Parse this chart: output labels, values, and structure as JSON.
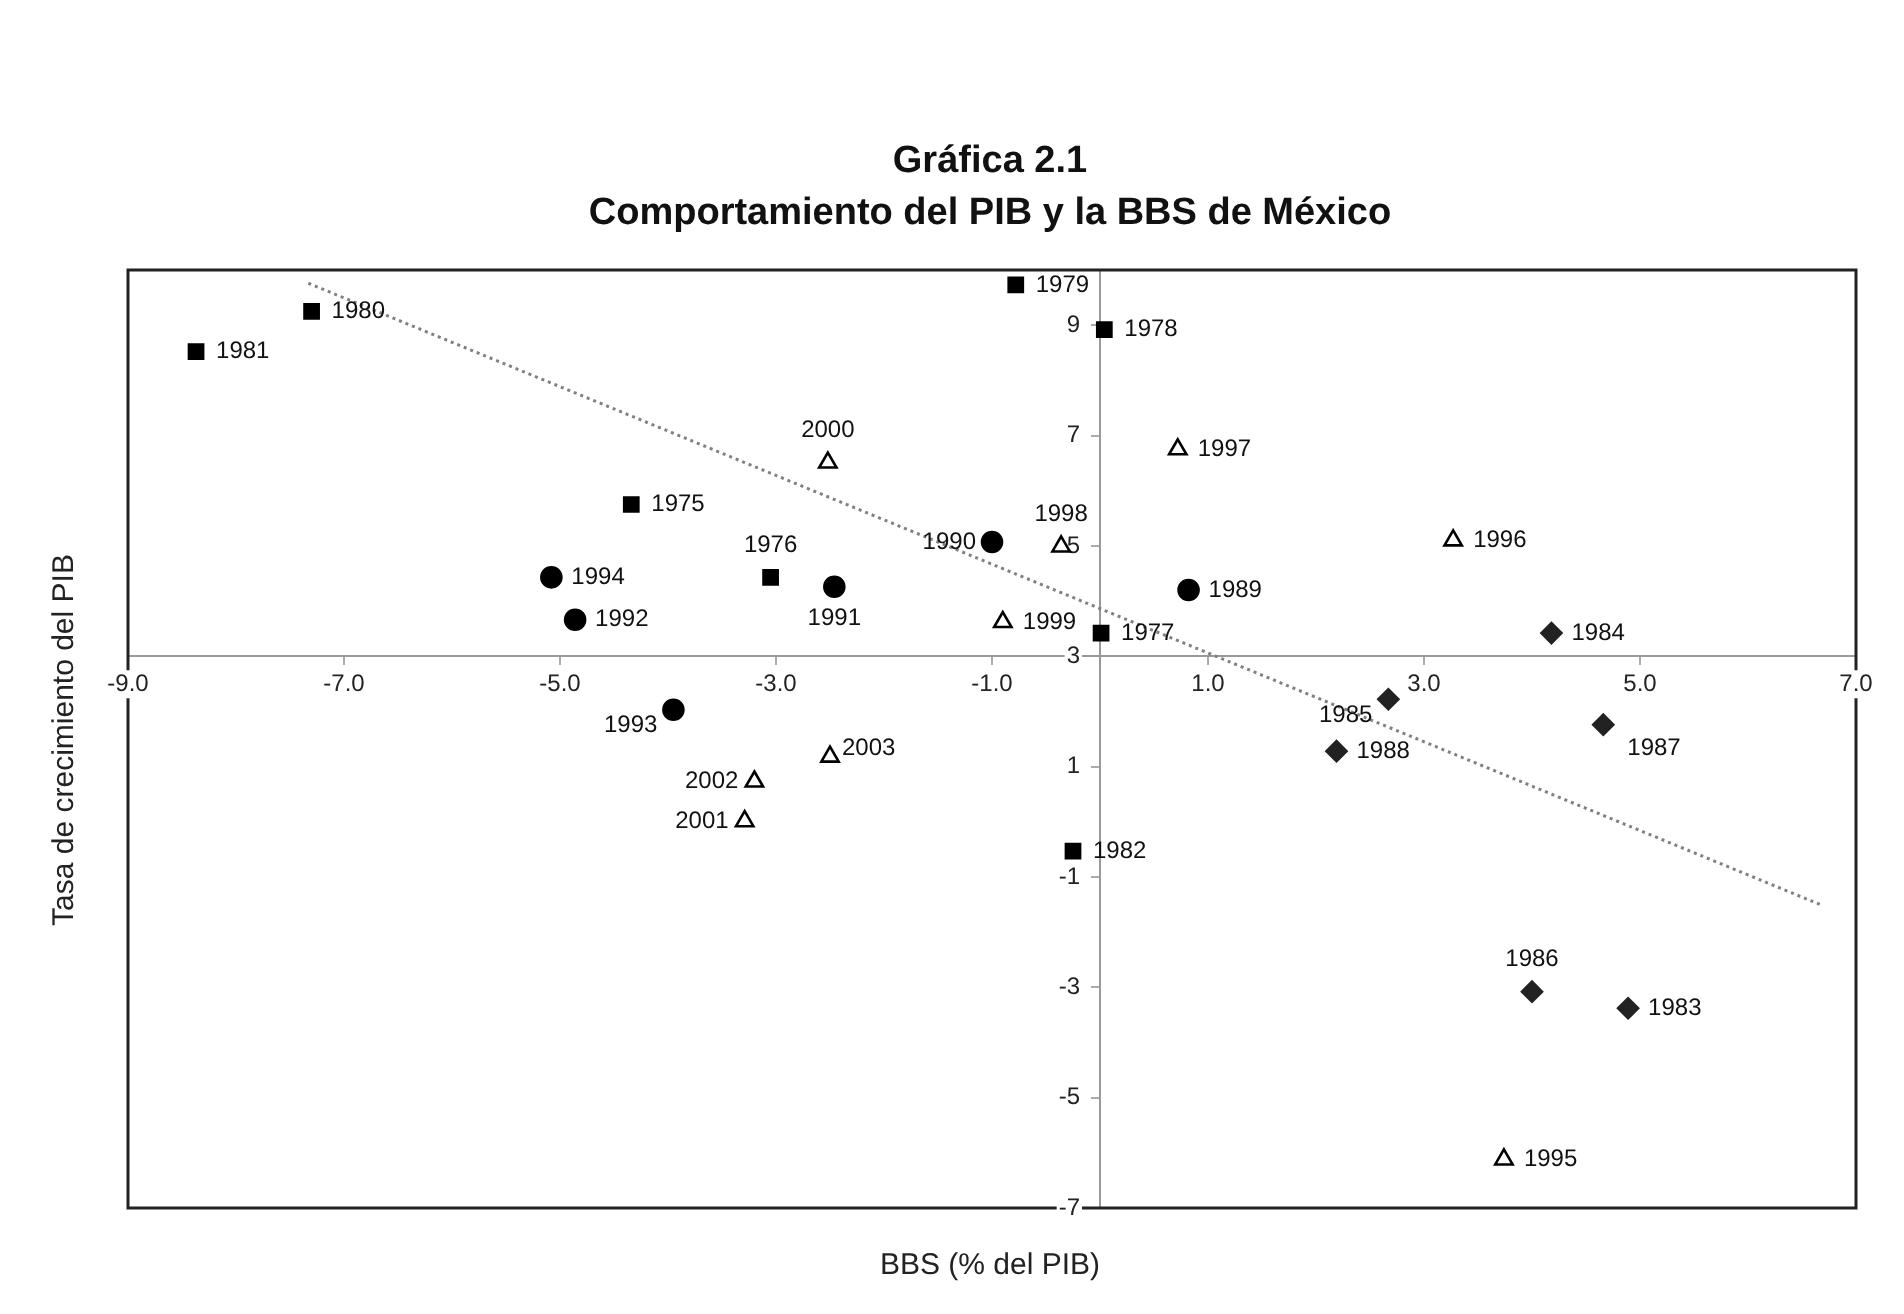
{
  "chart_data": {
    "type": "scatter",
    "title": "Gráfica 2.1",
    "subtitle": "Comportamiento del PIB y la BBS de México",
    "xlabel": "BBS (% del PIB)",
    "ylabel": "Tasa de crecimiento del PIB",
    "xlim": [
      -9,
      7
    ],
    "ylim": [
      -7,
      10
    ],
    "xticks": [
      {
        "value": -9,
        "label": "-9.0"
      },
      {
        "value": -7,
        "label": "-7.0"
      },
      {
        "value": -5,
        "label": "-5.0"
      },
      {
        "value": -3,
        "label": "-3.0"
      },
      {
        "value": -1,
        "label": "-1.0"
      },
      {
        "value": 1,
        "label": "1.0"
      },
      {
        "value": 3,
        "label": "3.0"
      },
      {
        "value": 5,
        "label": "5.0"
      },
      {
        "value": 7,
        "label": "7.0"
      }
    ],
    "yticks": [
      -7,
      -5,
      -3,
      -1,
      1,
      3,
      5,
      7,
      9
    ],
    "grid": false,
    "legend": false,
    "series": [
      {
        "type": "scatter",
        "marker": "square",
        "color": "#000000",
        "x": [
          -4.34,
          -3.05,
          0.01,
          0.04,
          -0.78,
          -7.3,
          -8.37,
          -0.25
        ],
        "values": [
          5.75,
          4.43,
          3.42,
          8.92,
          9.73,
          9.25,
          8.52,
          -0.53
        ]
      },
      {
        "type": "scatter",
        "marker": "circle",
        "color": "#000000",
        "x": [
          0.82,
          -1.0,
          -2.46,
          -4.86,
          -3.95,
          -5.08
        ],
        "values": [
          4.2,
          5.07,
          4.26,
          3.66,
          2.03,
          4.43
        ]
      },
      {
        "type": "scatter",
        "marker": "triangle",
        "color": "#000000",
        "x": [
          3.74,
          3.27,
          0.72,
          -0.36,
          -0.9,
          -2.52,
          -3.29,
          -3.2,
          -2.5
        ],
        "values": [
          -6.12,
          5.1,
          6.75,
          4.99,
          3.62,
          6.51,
          0.01,
          0.73,
          1.18
        ]
      },
      {
        "type": "scatter",
        "marker": "diamond",
        "color": "#222222",
        "x": [
          4.89,
          4.18,
          2.67,
          4.0,
          4.66,
          2.19
        ],
        "values": [
          -3.38,
          3.42,
          2.22,
          -3.08,
          1.76,
          1.28
        ]
      },
      {
        "type": "line",
        "marker": "none",
        "line_style": "dotted",
        "color": "#808080",
        "x": [
          -7.33,
          6.68
        ],
        "values": [
          9.76,
          -1.51
        ]
      }
    ],
    "annotations": [
      {
        "text": "1975",
        "x": -4.34,
        "y": 5.75
      },
      {
        "text": "1976",
        "x": -3.05,
        "y": 4.43
      },
      {
        "text": "1977",
        "x": 0.01,
        "y": 3.42
      },
      {
        "text": "1978",
        "x": 0.04,
        "y": 8.92
      },
      {
        "text": "1979",
        "x": -0.78,
        "y": 9.73
      },
      {
        "text": "1980",
        "x": -7.3,
        "y": 9.25
      },
      {
        "text": "1981",
        "x": -8.37,
        "y": 8.52
      },
      {
        "text": "1982",
        "x": -0.25,
        "y": -0.53
      },
      {
        "text": "1989",
        "x": 0.82,
        "y": 4.2
      },
      {
        "text": "1990",
        "x": -1.0,
        "y": 5.07
      },
      {
        "text": "1991",
        "x": -2.46,
        "y": 4.26
      },
      {
        "text": "1992",
        "x": -4.86,
        "y": 3.66
      },
      {
        "text": "1993",
        "x": -3.95,
        "y": 2.03
      },
      {
        "text": "1994",
        "x": -5.08,
        "y": 4.43
      },
      {
        "text": "1995",
        "x": 3.74,
        "y": -6.12
      },
      {
        "text": "1996",
        "x": 3.27,
        "y": 5.1
      },
      {
        "text": "1997",
        "x": 0.72,
        "y": 6.75
      },
      {
        "text": "1998",
        "x": -0.36,
        "y": 4.99
      },
      {
        "text": "1999",
        "x": -0.9,
        "y": 3.62
      },
      {
        "text": "2000",
        "x": -2.52,
        "y": 6.51
      },
      {
        "text": "2001",
        "x": -3.29,
        "y": 0.01
      },
      {
        "text": "2002",
        "x": -3.2,
        "y": 0.73
      },
      {
        "text": "2003",
        "x": -2.5,
        "y": 1.18
      },
      {
        "text": "1983",
        "x": 4.89,
        "y": -3.38
      },
      {
        "text": "1984",
        "x": 4.18,
        "y": 3.42
      },
      {
        "text": "1985",
        "x": 2.67,
        "y": 2.22
      },
      {
        "text": "1986",
        "x": 4.0,
        "y": -3.08
      },
      {
        "text": "1987",
        "x": 4.66,
        "y": 1.76
      },
      {
        "text": "1988",
        "x": 2.19,
        "y": 1.28
      }
    ]
  }
}
